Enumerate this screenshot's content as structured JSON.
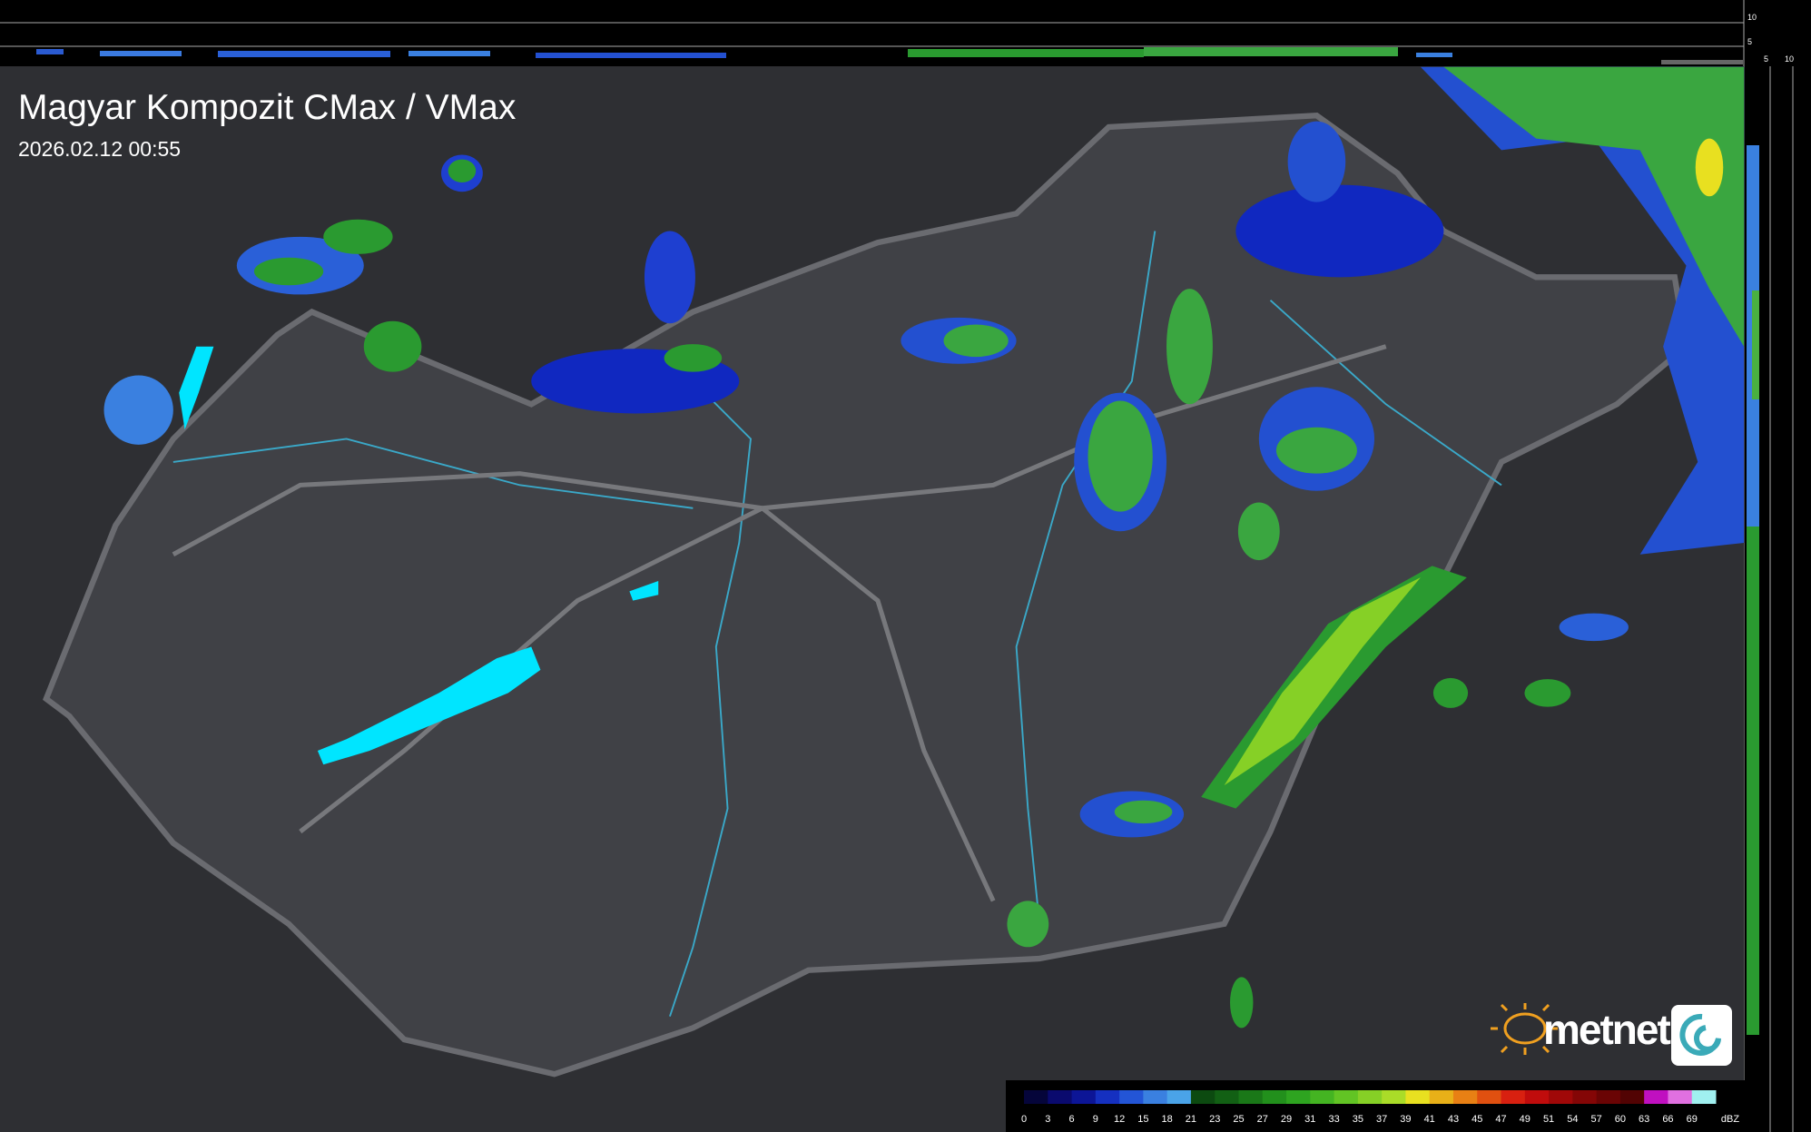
{
  "header": {
    "title": "Magyar Kompozit CMax / VMax",
    "timestamp": "2026.02.12 00:55"
  },
  "side_scale": {
    "top_labels": [
      "10",
      "5"
    ],
    "side_labels": [
      "5",
      "10"
    ]
  },
  "logo": {
    "text": "metnet"
  },
  "legend": {
    "unit": "dBZ",
    "levels": [
      {
        "label": "0",
        "color": "#05053a"
      },
      {
        "label": "3",
        "color": "#0a0a6e"
      },
      {
        "label": "6",
        "color": "#0c1596"
      },
      {
        "label": "9",
        "color": "#1530c0"
      },
      {
        "label": "12",
        "color": "#2355d6"
      },
      {
        "label": "15",
        "color": "#3a80e0"
      },
      {
        "label": "18",
        "color": "#4aa3e8"
      },
      {
        "label": "21",
        "color": "#0c4a10"
      },
      {
        "label": "23",
        "color": "#126014"
      },
      {
        "label": "25",
        "color": "#1a7818"
      },
      {
        "label": "27",
        "color": "#22901c"
      },
      {
        "label": "29",
        "color": "#2ea420"
      },
      {
        "label": "31",
        "color": "#44b422"
      },
      {
        "label": "33",
        "color": "#62c424"
      },
      {
        "label": "35",
        "color": "#86d026"
      },
      {
        "label": "37",
        "color": "#aadc28"
      },
      {
        "label": "39",
        "color": "#e8e020"
      },
      {
        "label": "41",
        "color": "#e8b018"
      },
      {
        "label": "43",
        "color": "#e88014"
      },
      {
        "label": "45",
        "color": "#e05010"
      },
      {
        "label": "47",
        "color": "#d82010"
      },
      {
        "label": "49",
        "color": "#c00c0c"
      },
      {
        "label": "51",
        "color": "#a00808"
      },
      {
        "label": "54",
        "color": "#840606"
      },
      {
        "label": "57",
        "color": "#6a0404"
      },
      {
        "label": "60",
        "color": "#520303"
      },
      {
        "label": "63",
        "color": "#c010c0"
      },
      {
        "label": "66",
        "color": "#e070e0"
      },
      {
        "label": "69",
        "color": "#a0f0f0"
      }
    ]
  }
}
